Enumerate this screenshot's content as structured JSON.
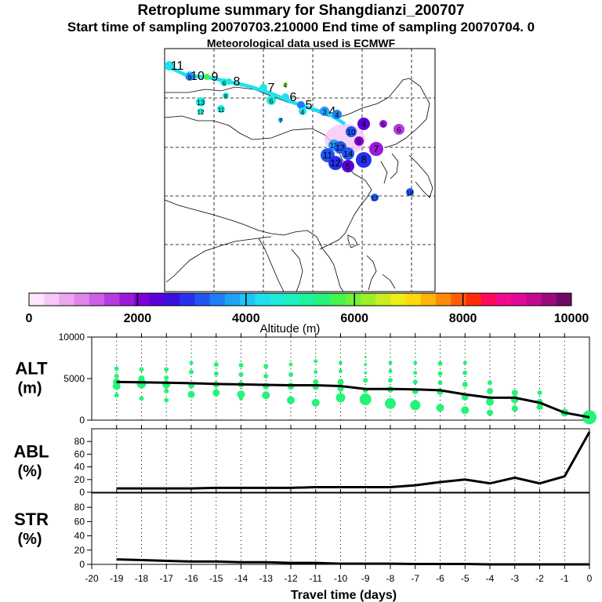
{
  "header": {
    "title": "Retroplume summary for Shangdianzi_200707",
    "sampling": "Start time of sampling 20070703.210000     End time of sampling 20070704.     0",
    "meteo": "Meteorological data used is ECMWF"
  },
  "colorbar": {
    "ticks": [
      "0",
      "2000",
      "4000",
      "6000",
      "8000",
      "10000"
    ],
    "label": "Altitude (m)",
    "colors": [
      "#fde6fd",
      "#f7c8f7",
      "#eca6f0",
      "#df84ea",
      "#cc5fe4",
      "#b43cde",
      "#9a1ad8",
      "#7d00d6",
      "#5a00d8",
      "#3a10e0",
      "#2630ec",
      "#1f56f2",
      "#1f7ef4",
      "#1fa3f6",
      "#1ec6f6",
      "#1ee0ef",
      "#1eeadc",
      "#1ef0bf",
      "#1ef29b",
      "#24f477",
      "#46f450",
      "#71f237",
      "#9cf028",
      "#c7ee1e",
      "#ecee16",
      "#ffd80c",
      "#ffb408",
      "#ff8a06",
      "#ff5e06",
      "#ff2a06",
      "#ff0a5a",
      "#f40a8c",
      "#e10a9a",
      "#c40a8e",
      "#9c0a7c",
      "#6e0a64"
    ]
  },
  "map": {
    "trajectory_labels": [
      {
        "t": "11",
        "c": "#1ee0ef"
      },
      {
        "t": "10",
        "c": "#1ee0ef"
      },
      {
        "t": "9",
        "c": "#46f450"
      },
      {
        "t": "8",
        "c": "#1eeadc"
      },
      {
        "t": "7",
        "c": "#1eeadc"
      },
      {
        "t": "6",
        "c": "#1ee0ef"
      },
      {
        "t": "5",
        "c": "#1f7ef4"
      },
      {
        "t": "4",
        "c": "#3a10e0"
      }
    ],
    "plume_labels": [
      {
        "t": "9",
        "c": "#1f7ef4"
      },
      {
        "t": "6",
        "c": "#1eeadc"
      },
      {
        "t": "8",
        "c": "#1eeadc"
      },
      {
        "t": "4",
        "c": "#71f237"
      },
      {
        "t": "13",
        "c": "#1eeadc"
      },
      {
        "t": "12",
        "c": "#1eeadc"
      },
      {
        "t": "11",
        "c": "#1eeadc"
      },
      {
        "t": "6",
        "c": "#1eeadc"
      },
      {
        "t": "4",
        "c": "#1ee0ef"
      },
      {
        "t": "7",
        "c": "#1fa3f6"
      },
      {
        "t": "3",
        "c": "#1fa3f6"
      },
      {
        "t": "4",
        "c": "#1f7ef4"
      },
      {
        "t": "4",
        "c": "#5a00d8"
      },
      {
        "t": "5",
        "c": "#9a1ad8"
      },
      {
        "t": "6",
        "c": "#b43cde"
      },
      {
        "t": "10",
        "c": "#1f56f2"
      },
      {
        "t": "15",
        "c": "#1fa3f6"
      },
      {
        "t": "9",
        "c": "#7d00d6"
      },
      {
        "t": "7",
        "c": "#9a1ad8"
      },
      {
        "t": "11",
        "c": "#1f56f2"
      },
      {
        "t": "12",
        "c": "#2630ec"
      },
      {
        "t": "8",
        "c": "#2630ec"
      },
      {
        "t": "5",
        "c": "#5a00d8"
      },
      {
        "t": "13",
        "c": "#1f56f2"
      },
      {
        "t": "14",
        "c": "#1f56f2"
      },
      {
        "t": "18",
        "c": "#1f56f2"
      },
      {
        "t": "17",
        "c": "#1f56f2"
      }
    ]
  },
  "chart_data": [
    {
      "type": "scatter",
      "name": "ALT",
      "ylabel": "ALT",
      "yunit": "(m)",
      "ylim": [
        0,
        10000
      ],
      "yticks": [
        0,
        5000,
        10000
      ],
      "xlim": [
        -20,
        0
      ],
      "mean_line": {
        "x": [
          -19,
          -18,
          -17,
          -16,
          -15,
          -14,
          -13,
          -12,
          -11,
          -10,
          -9,
          -8,
          -7,
          -6,
          -5,
          -4,
          -3,
          -2,
          -1,
          0
        ],
        "y": [
          4600,
          4550,
          4500,
          4450,
          4350,
          4300,
          4250,
          4200,
          4200,
          4100,
          3750,
          3750,
          3700,
          3600,
          3100,
          2700,
          2700,
          2100,
          900,
          350
        ]
      },
      "dots": [
        {
          "x": -19,
          "y": 6200,
          "s": 3
        },
        {
          "x": -19,
          "y": 5300,
          "s": 3
        },
        {
          "x": -19,
          "y": 4600,
          "s": 4.5
        },
        {
          "x": -19,
          "y": 4100,
          "s": 5
        },
        {
          "x": -19,
          "y": 3000,
          "s": 3
        },
        {
          "x": -18,
          "y": 6100,
          "s": 3
        },
        {
          "x": -18,
          "y": 5000,
          "s": 4
        },
        {
          "x": -18,
          "y": 4400,
          "s": 6
        },
        {
          "x": -18,
          "y": 2600,
          "s": 3
        },
        {
          "x": -17,
          "y": 6100,
          "s": 3
        },
        {
          "x": -17,
          "y": 5100,
          "s": 3
        },
        {
          "x": -17,
          "y": 4300,
          "s": 5
        },
        {
          "x": -17,
          "y": 3500,
          "s": 3
        },
        {
          "x": -17,
          "y": 2400,
          "s": 3
        },
        {
          "x": -16,
          "y": 6900,
          "s": 2.5
        },
        {
          "x": -16,
          "y": 5800,
          "s": 3
        },
        {
          "x": -16,
          "y": 4200,
          "s": 4
        },
        {
          "x": -16,
          "y": 3100,
          "s": 4.5
        },
        {
          "x": -15,
          "y": 6700,
          "s": 3
        },
        {
          "x": -15,
          "y": 5600,
          "s": 3
        },
        {
          "x": -15,
          "y": 4300,
          "s": 4
        },
        {
          "x": -15,
          "y": 3300,
          "s": 4.5
        },
        {
          "x": -14,
          "y": 6600,
          "s": 3
        },
        {
          "x": -14,
          "y": 5500,
          "s": 3
        },
        {
          "x": -14,
          "y": 4300,
          "s": 4
        },
        {
          "x": -14,
          "y": 3100,
          "s": 5
        },
        {
          "x": -14,
          "y": 2600,
          "s": 2.5
        },
        {
          "x": -13,
          "y": 6500,
          "s": 3
        },
        {
          "x": -13,
          "y": 5300,
          "s": 3
        },
        {
          "x": -13,
          "y": 4100,
          "s": 4
        },
        {
          "x": -13,
          "y": 3000,
          "s": 5
        },
        {
          "x": -12,
          "y": 6700,
          "s": 2.5
        },
        {
          "x": -12,
          "y": 5500,
          "s": 3
        },
        {
          "x": -12,
          "y": 4100,
          "s": 4.5
        },
        {
          "x": -12,
          "y": 2400,
          "s": 5
        },
        {
          "x": -11,
          "y": 7100,
          "s": 2.5
        },
        {
          "x": -11,
          "y": 5800,
          "s": 2.5
        },
        {
          "x": -11,
          "y": 4600,
          "s": 3.5
        },
        {
          "x": -11,
          "y": 4000,
          "s": 4
        },
        {
          "x": -11,
          "y": 2100,
          "s": 5
        },
        {
          "x": -10,
          "y": 6900,
          "s": 2.5
        },
        {
          "x": -10,
          "y": 5900,
          "s": 2.5
        },
        {
          "x": -10,
          "y": 4600,
          "s": 4
        },
        {
          "x": -10,
          "y": 3800,
          "s": 4
        },
        {
          "x": -10,
          "y": 2700,
          "s": 6
        },
        {
          "x": -9,
          "y": 7600,
          "s": 1.5
        },
        {
          "x": -9,
          "y": 6700,
          "s": 2
        },
        {
          "x": -9,
          "y": 5700,
          "s": 2
        },
        {
          "x": -9,
          "y": 4800,
          "s": 3
        },
        {
          "x": -9,
          "y": 3600,
          "s": 3.5
        },
        {
          "x": -9,
          "y": 2500,
          "s": 7.5
        },
        {
          "x": -8,
          "y": 6900,
          "s": 2.5
        },
        {
          "x": -8,
          "y": 5900,
          "s": 2.5
        },
        {
          "x": -8,
          "y": 4800,
          "s": 3
        },
        {
          "x": -8,
          "y": 3700,
          "s": 4
        },
        {
          "x": -8,
          "y": 2000,
          "s": 7
        },
        {
          "x": -7,
          "y": 6900,
          "s": 2.5
        },
        {
          "x": -7,
          "y": 5700,
          "s": 2.5
        },
        {
          "x": -7,
          "y": 4600,
          "s": 3
        },
        {
          "x": -7,
          "y": 3500,
          "s": 4
        },
        {
          "x": -7,
          "y": 1800,
          "s": 6.5
        },
        {
          "x": -6,
          "y": 6800,
          "s": 3
        },
        {
          "x": -6,
          "y": 5600,
          "s": 3
        },
        {
          "x": -6,
          "y": 4500,
          "s": 3
        },
        {
          "x": -6,
          "y": 3400,
          "s": 4
        },
        {
          "x": -6,
          "y": 1500,
          "s": 5
        },
        {
          "x": -5,
          "y": 6900,
          "s": 2.5
        },
        {
          "x": -5,
          "y": 5700,
          "s": 3
        },
        {
          "x": -5,
          "y": 4300,
          "s": 3.5
        },
        {
          "x": -5,
          "y": 2800,
          "s": 4.5
        },
        {
          "x": -5,
          "y": 1200,
          "s": 5
        },
        {
          "x": -4,
          "y": 4500,
          "s": 3
        },
        {
          "x": -4,
          "y": 3500,
          "s": 4
        },
        {
          "x": -4,
          "y": 2200,
          "s": 5
        },
        {
          "x": -4,
          "y": 900,
          "s": 4
        },
        {
          "x": -3,
          "y": 3300,
          "s": 4
        },
        {
          "x": -3,
          "y": 2500,
          "s": 5
        },
        {
          "x": -3,
          "y": 1400,
          "s": 4
        },
        {
          "x": -2,
          "y": 3300,
          "s": 3
        },
        {
          "x": -2,
          "y": 2200,
          "s": 4
        },
        {
          "x": -2,
          "y": 1600,
          "s": 4
        },
        {
          "x": -1,
          "y": 900,
          "s": 5
        },
        {
          "x": 0,
          "y": 350,
          "s": 9
        }
      ]
    },
    {
      "type": "line",
      "name": "ABL",
      "ylabel": "ABL",
      "yunit": "(%)",
      "ylim": [
        0,
        100
      ],
      "yticks": [
        0,
        20,
        40,
        60,
        80
      ],
      "xlim": [
        -20,
        0
      ],
      "x": [
        -19,
        -18,
        -17,
        -16,
        -15,
        -14,
        -13,
        -12,
        -11,
        -10,
        -9,
        -8,
        -7,
        -6,
        -5,
        -4,
        -3,
        -2,
        -1,
        0
      ],
      "y": [
        6,
        6,
        6,
        6,
        7,
        7,
        7,
        7,
        8,
        8,
        8,
        8,
        11,
        16,
        20,
        14,
        23,
        14,
        25,
        95
      ]
    },
    {
      "type": "line",
      "name": "STR",
      "ylabel": "STR",
      "yunit": "(%)",
      "ylim": [
        0,
        100
      ],
      "yticks": [
        0,
        20,
        40,
        60,
        80
      ],
      "xlim": [
        -20,
        0
      ],
      "x": [
        -19,
        -18,
        -17,
        -16,
        -15,
        -14,
        -13,
        -12,
        -11,
        -10,
        -9,
        -8,
        -7,
        -6,
        -5,
        -4,
        -3,
        -2,
        -1,
        0
      ],
      "y": [
        7,
        6,
        5,
        4,
        4,
        3,
        3,
        2,
        2,
        1,
        1,
        1,
        0.5,
        0.5,
        0.5,
        0,
        0,
        0,
        0,
        0
      ],
      "xticks": [
        -20,
        -19,
        -18,
        -17,
        -16,
        -15,
        -14,
        -13,
        -12,
        -11,
        -10,
        -9,
        -8,
        -7,
        -6,
        -5,
        -4,
        -3,
        -2,
        -1,
        0
      ],
      "xlabel": "Travel time (days)"
    }
  ]
}
